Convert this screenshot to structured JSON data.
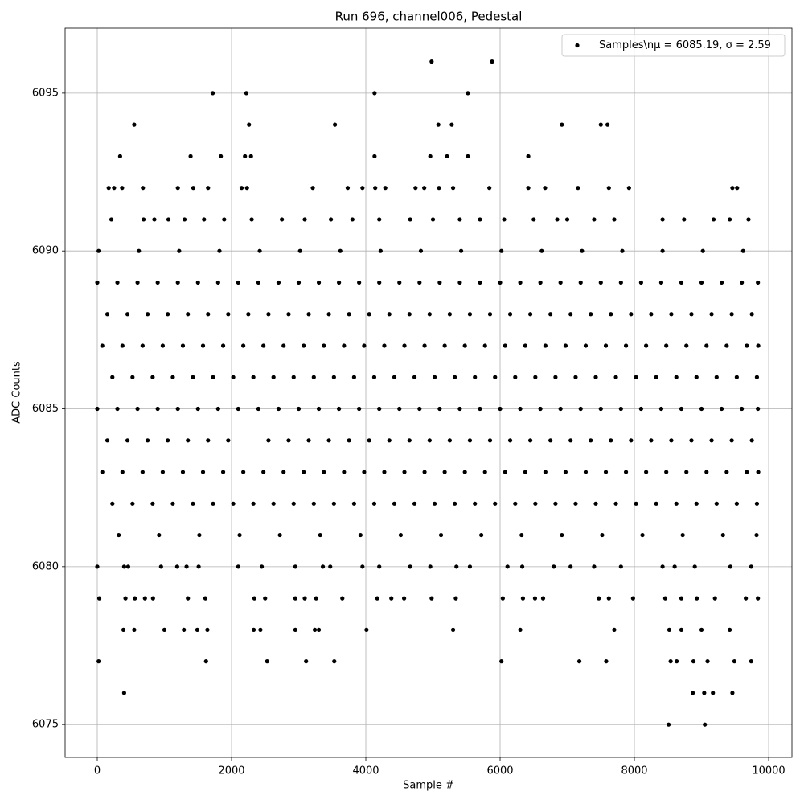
{
  "chart_data": {
    "type": "scatter",
    "title": "Run 696, channel006, Pedestal",
    "xlabel": "Sample #",
    "ylabel": "ADC Counts",
    "xlim": [
      -479,
      10347
    ],
    "ylim": [
      6073.96,
      6097.06
    ],
    "xticks": [
      0,
      2000,
      4000,
      6000,
      8000,
      10000
    ],
    "yticks": [
      6075,
      6080,
      6085,
      6090,
      6095
    ],
    "grid": true,
    "legend": "upper right",
    "series": [
      {
        "name": "Samples\\nμ = 6085.19, σ = 2.59",
        "color": "#000000",
        "x": [
          0,
          300,
          600,
          900,
          1200,
          1500,
          1800,
          2100,
          2400,
          2700,
          3000,
          3300,
          3600,
          3900,
          4200,
          4500,
          4800,
          5100,
          5400,
          5700,
          6000,
          6300,
          6600,
          6900,
          7200,
          7500,
          7800,
          8100,
          8400,
          8700,
          9000,
          9300,
          9600,
          9840,
          150,
          450,
          750,
          1050,
          1350,
          1650,
          1950,
          2250,
          2550,
          2850,
          3150,
          3450,
          3750,
          4050,
          4350,
          4650,
          4950,
          5250,
          5550,
          5850,
          6150,
          6450,
          6750,
          7050,
          7350,
          7650,
          7950,
          8250,
          8550,
          8850,
          9150,
          9450,
          9750,
          75,
          375,
          675,
          975,
          1275,
          1575,
          1875,
          2175,
          2475,
          2775,
          3075,
          3375,
          3675,
          3975,
          4275,
          4575,
          4875,
          5175,
          5475,
          5775,
          6075,
          6375,
          6675,
          6975,
          7275,
          7575,
          7875,
          8175,
          8475,
          8775,
          9075,
          9375,
          9675,
          9845,
          225,
          525,
          825,
          1125,
          1425,
          1725,
          2025,
          2325,
          2625,
          2925,
          3225,
          3525,
          3825,
          4125,
          4425,
          4725,
          5025,
          5325,
          5625,
          5925,
          6225,
          6525,
          6825,
          7125,
          7425,
          7725,
          8025,
          8325,
          8625,
          8925,
          9225,
          9525,
          9825,
          0,
          300,
          600,
          900,
          1200,
          1500,
          1800,
          2100,
          2400,
          2700,
          3000,
          3300,
          3600,
          3900,
          4200,
          4500,
          4800,
          5100,
          5400,
          5700,
          6000,
          6300,
          6600,
          6900,
          7200,
          7500,
          7800,
          8100,
          8400,
          8700,
          9000,
          9300,
          9600,
          9840,
          150,
          450,
          750,
          1050,
          1350,
          1650,
          1950,
          2550,
          2850,
          3150,
          3450,
          3750,
          4050,
          4350,
          4650,
          4950,
          5250,
          5550,
          5850,
          6150,
          6450,
          6750,
          7050,
          7350,
          7650,
          7950,
          8250,
          8550,
          8850,
          9150,
          9450,
          9750,
          75,
          375,
          675,
          975,
          1275,
          1575,
          1875,
          2175,
          2475,
          2775,
          3075,
          3375,
          3675,
          3975,
          4275,
          4575,
          4875,
          5175,
          5475,
          5775,
          6075,
          6375,
          6675,
          6975,
          7275,
          7575,
          7875,
          8175,
          8475,
          8775,
          9075,
          9375,
          9675,
          9845,
          225,
          525,
          825,
          1125,
          1425,
          1725,
          2025,
          2325,
          2625,
          2925,
          3225,
          3525,
          3825,
          4125,
          4425,
          4725,
          5025,
          5325,
          5625,
          5925,
          6225,
          6525,
          6825,
          7125,
          7425,
          7725,
          8025,
          8325,
          8625,
          8925,
          9225,
          9525,
          9825,
          20,
          620,
          1220,
          1820,
          2420,
          3020,
          3620,
          4220,
          4820,
          5420,
          6020,
          6620,
          7220,
          7820,
          8420,
          9020,
          9620,
          320,
          920,
          1520,
          2120,
          2720,
          3320,
          3920,
          4520,
          5120,
          5720,
          6320,
          6920,
          7520,
          8120,
          8720,
          9320,
          9820,
          4980,
          5880,
          1720,
          2220,
          4130,
          5520,
          550,
          2260,
          3540,
          5080,
          5280,
          6920,
          7500,
          7600,
          340,
          1390,
          1840,
          2200,
          2290,
          4130,
          4960,
          5210,
          5520,
          6420,
          170,
          250,
          370,
          680,
          1200,
          1430,
          1650,
          2150,
          2230,
          3210,
          3730,
          3950,
          4140,
          4290,
          4740,
          4870,
          5090,
          5300,
          5840,
          6420,
          6670,
          7160,
          7620,
          7920,
          9460,
          9530,
          210,
          690,
          850,
          1060,
          1300,
          1590,
          1890,
          2300,
          2750,
          3090,
          3480,
          3800,
          4200,
          4660,
          5000,
          5400,
          5700,
          6060,
          6500,
          6850,
          7000,
          7400,
          7700,
          8420,
          8740,
          9180,
          9420,
          9700,
          0,
          400,
          460,
          950,
          1190,
          1330,
          1510,
          2100,
          2450,
          2950,
          3360,
          3470,
          3950,
          4200,
          4660,
          4960,
          5350,
          5550,
          6110,
          6330,
          6800,
          7050,
          7400,
          7800,
          8420,
          8600,
          8900,
          9430,
          9740,
          30,
          420,
          560,
          710,
          830,
          1350,
          1610,
          2340,
          2500,
          2950,
          3090,
          3260,
          3650,
          4170,
          4380,
          4570,
          4980,
          5340,
          6040,
          6340,
          6520,
          6640,
          7470,
          7620,
          7980,
          8460,
          8700,
          8930,
          9200,
          9660,
          9840,
          390,
          550,
          1000,
          1290,
          1490,
          1640,
          2330,
          2430,
          2950,
          3240,
          3300,
          4010,
          5300,
          6300,
          7700,
          8520,
          8700,
          9000,
          9420,
          20,
          1620,
          2530,
          3110,
          3530,
          6020,
          7180,
          7580,
          8540,
          8630,
          8880,
          9090,
          9490,
          9740,
          400,
          8870,
          9040,
          9170,
          9460,
          8510,
          9050
        ],
        "values": [
          6089,
          6089,
          6089,
          6089,
          6089,
          6089,
          6089,
          6089,
          6089,
          6089,
          6089,
          6089,
          6089,
          6089,
          6089,
          6089,
          6089,
          6089,
          6089,
          6089,
          6089,
          6089,
          6089,
          6089,
          6089,
          6089,
          6089,
          6089,
          6089,
          6089,
          6089,
          6089,
          6089,
          6089,
          6088,
          6088,
          6088,
          6088,
          6088,
          6088,
          6088,
          6088,
          6088,
          6088,
          6088,
          6088,
          6088,
          6088,
          6088,
          6088,
          6088,
          6088,
          6088,
          6088,
          6088,
          6088,
          6088,
          6088,
          6088,
          6088,
          6088,
          6088,
          6088,
          6088,
          6088,
          6088,
          6088,
          6087,
          6087,
          6087,
          6087,
          6087,
          6087,
          6087,
          6087,
          6087,
          6087,
          6087,
          6087,
          6087,
          6087,
          6087,
          6087,
          6087,
          6087,
          6087,
          6087,
          6087,
          6087,
          6087,
          6087,
          6087,
          6087,
          6087,
          6087,
          6087,
          6087,
          6087,
          6087,
          6087,
          6087,
          6086,
          6086,
          6086,
          6086,
          6086,
          6086,
          6086,
          6086,
          6086,
          6086,
          6086,
          6086,
          6086,
          6086,
          6086,
          6086,
          6086,
          6086,
          6086,
          6086,
          6086,
          6086,
          6086,
          6086,
          6086,
          6086,
          6086,
          6086,
          6086,
          6086,
          6086,
          6086,
          6086,
          6085,
          6085,
          6085,
          6085,
          6085,
          6085,
          6085,
          6085,
          6085,
          6085,
          6085,
          6085,
          6085,
          6085,
          6085,
          6085,
          6085,
          6085,
          6085,
          6085,
          6085,
          6085,
          6085,
          6085,
          6085,
          6085,
          6085,
          6085,
          6085,
          6085,
          6085,
          6085,
          6085,
          6085,
          6084,
          6084,
          6084,
          6084,
          6084,
          6084,
          6084,
          6084,
          6084,
          6084,
          6084,
          6084,
          6084,
          6084,
          6084,
          6084,
          6084,
          6084,
          6084,
          6084,
          6084,
          6084,
          6084,
          6084,
          6084,
          6084,
          6084,
          6084,
          6084,
          6084,
          6084,
          6084,
          6083,
          6083,
          6083,
          6083,
          6083,
          6083,
          6083,
          6083,
          6083,
          6083,
          6083,
          6083,
          6083,
          6083,
          6083,
          6083,
          6083,
          6083,
          6083,
          6083,
          6083,
          6083,
          6083,
          6083,
          6083,
          6083,
          6083,
          6083,
          6083,
          6083,
          6083,
          6083,
          6083,
          6083,
          6082,
          6082,
          6082,
          6082,
          6082,
          6082,
          6082,
          6082,
          6082,
          6082,
          6082,
          6082,
          6082,
          6082,
          6082,
          6082,
          6082,
          6082,
          6082,
          6082,
          6082,
          6082,
          6082,
          6082,
          6082,
          6082,
          6082,
          6082,
          6082,
          6082,
          6082,
          6082,
          6082,
          6090,
          6090,
          6090,
          6090,
          6090,
          6090,
          6090,
          6090,
          6090,
          6090,
          6090,
          6090,
          6090,
          6090,
          6090,
          6090,
          6090,
          6081,
          6081,
          6081,
          6081,
          6081,
          6081,
          6081,
          6081,
          6081,
          6081,
          6081,
          6081,
          6081,
          6081,
          6081,
          6081,
          6081,
          6096,
          6096,
          6095,
          6095,
          6095,
          6095,
          6094,
          6094,
          6094,
          6094,
          6094,
          6094,
          6094,
          6094,
          6093,
          6093,
          6093,
          6093,
          6093,
          6093,
          6093,
          6093,
          6093,
          6093,
          6092,
          6092,
          6092,
          6092,
          6092,
          6092,
          6092,
          6092,
          6092,
          6092,
          6092,
          6092,
          6092,
          6092,
          6092,
          6092,
          6092,
          6092,
          6092,
          6092,
          6092,
          6092,
          6092,
          6092,
          6092,
          6092,
          6091,
          6091,
          6091,
          6091,
          6091,
          6091,
          6091,
          6091,
          6091,
          6091,
          6091,
          6091,
          6091,
          6091,
          6091,
          6091,
          6091,
          6091,
          6091,
          6091,
          6091,
          6091,
          6091,
          6091,
          6091,
          6091,
          6091,
          6091,
          6080,
          6080,
          6080,
          6080,
          6080,
          6080,
          6080,
          6080,
          6080,
          6080,
          6080,
          6080,
          6080,
          6080,
          6080,
          6080,
          6080,
          6080,
          6080,
          6080,
          6080,
          6080,
          6080,
          6080,
          6080,
          6080,
          6080,
          6080,
          6080,
          6079,
          6079,
          6079,
          6079,
          6079,
          6079,
          6079,
          6079,
          6079,
          6079,
          6079,
          6079,
          6079,
          6079,
          6079,
          6079,
          6079,
          6079,
          6079,
          6079,
          6079,
          6079,
          6079,
          6079,
          6079,
          6079,
          6079,
          6079,
          6079,
          6079,
          6079,
          6078,
          6078,
          6078,
          6078,
          6078,
          6078,
          6078,
          6078,
          6078,
          6078,
          6078,
          6078,
          6078,
          6078,
          6078,
          6078,
          6078,
          6078,
          6078,
          6077,
          6077,
          6077,
          6077,
          6077,
          6077,
          6077,
          6077,
          6077,
          6077,
          6077,
          6077,
          6077,
          6077,
          6076,
          6076,
          6076,
          6076,
          6076,
          6075,
          6075
        ]
      }
    ]
  }
}
